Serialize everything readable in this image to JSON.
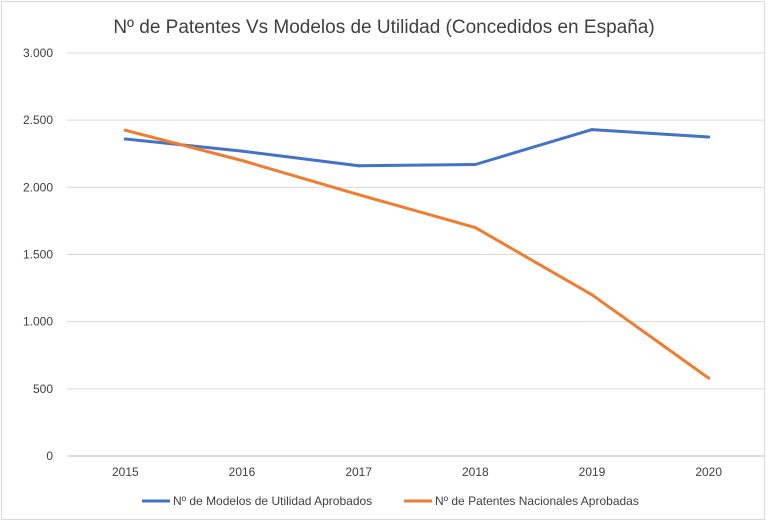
{
  "chart_data": {
    "type": "line",
    "title": "Nº de Patentes Vs Modelos de Utilidad (Concedidos en España)",
    "categories": [
      "2015",
      "2016",
      "2017",
      "2018",
      "2019",
      "2020"
    ],
    "ylim": [
      0,
      3000
    ],
    "yticks": [
      0,
      500,
      1000,
      1500,
      2000,
      2500,
      3000
    ],
    "ytick_labels": [
      "0",
      "500",
      "1.000",
      "1.500",
      "2.000",
      "2.500",
      "3.000"
    ],
    "grid": true,
    "legend_position": "bottom",
    "series": [
      {
        "name": "Nº de Modelos de Utilidad Aprobados",
        "color": "#4472c4",
        "values": [
          2360,
          2270,
          2160,
          2170,
          2430,
          2375
        ]
      },
      {
        "name": "Nº de Patentes Nacionales Aprobadas",
        "color": "#ed7d31",
        "values": [
          2425,
          2200,
          1945,
          1700,
          1200,
          580
        ]
      }
    ]
  }
}
